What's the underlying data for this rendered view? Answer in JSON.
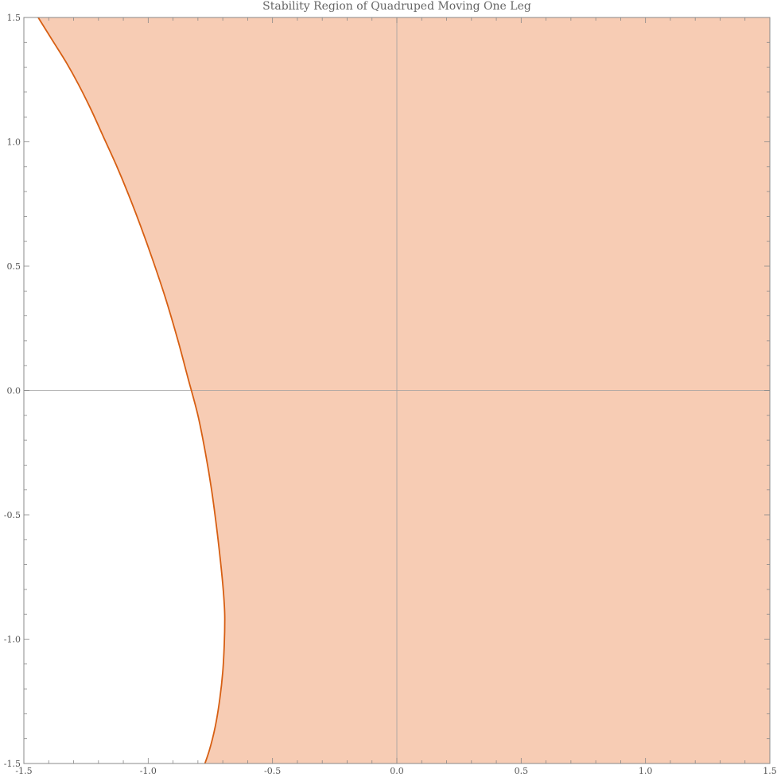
{
  "chart_data": {
    "type": "area",
    "title": "Stability Region of Quadruped Moving One Leg",
    "xlabel": "",
    "ylabel": "",
    "xlim": [
      -1.5,
      1.5
    ],
    "ylim": [
      -1.5,
      1.5
    ],
    "x_ticks": [
      -1.5,
      -1.0,
      -0.5,
      0.0,
      0.5,
      1.0,
      1.5
    ],
    "y_ticks": [
      -1.5,
      -1.0,
      -0.5,
      0.0,
      0.5,
      1.0,
      1.5
    ],
    "x_tick_labels": [
      "-1.5",
      "-1.0",
      "-0.5",
      "0.0",
      "0.5",
      "1.0",
      "1.5"
    ],
    "y_tick_labels": [
      "-1.5",
      "-1.0",
      "-0.5",
      "0.0",
      "0.5",
      "1.0",
      "1.5"
    ],
    "grid": false,
    "axes_lines_at_zero": true,
    "boundary_curve": {
      "x": [
        -1.473,
        -1.43,
        -1.38,
        -1.33,
        -1.28,
        -1.23,
        -1.18,
        -1.13,
        -1.08,
        -1.03,
        -0.98,
        -0.93,
        -0.88,
        -0.84,
        -0.8,
        -0.77,
        -0.745,
        -0.725,
        -0.71,
        -0.7,
        -0.694,
        -0.692,
        -0.694,
        -0.7,
        -0.712,
        -0.73,
        -0.755,
        -0.79
      ],
      "y": [
        1.55,
        1.48,
        1.4,
        1.32,
        1.23,
        1.13,
        1.02,
        0.91,
        0.79,
        0.66,
        0.52,
        0.37,
        0.2,
        0.05,
        -0.1,
        -0.25,
        -0.4,
        -0.55,
        -0.68,
        -0.78,
        -0.86,
        -0.92,
        -1.02,
        -1.13,
        -1.24,
        -1.35,
        -1.45,
        -1.55
      ]
    },
    "fill_side": "right",
    "colors": {
      "fill": "#f7ccb4",
      "boundary": "#d75f13",
      "frame": "#888888",
      "zero_axis": "#a0a0a0"
    }
  }
}
